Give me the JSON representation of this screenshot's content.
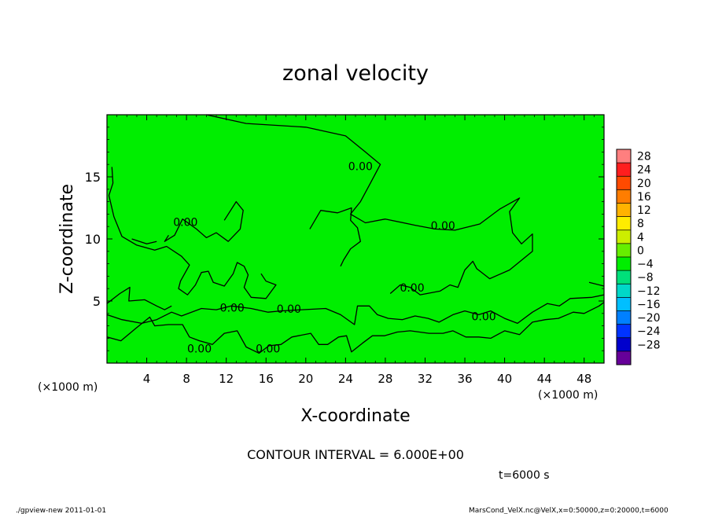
{
  "chart_data": {
    "type": "heatmap",
    "title": "zonal velocity",
    "xlabel": "X-coordinate",
    "ylabel": "Z-coordinate",
    "x_unit_label": "(×1000 m)",
    "y_unit_label": "(×1000 m)",
    "xlim": [
      0,
      50
    ],
    "ylim": [
      0,
      20
    ],
    "x_ticks": [
      4,
      8,
      12,
      16,
      20,
      24,
      28,
      32,
      36,
      40,
      44,
      48
    ],
    "y_ticks": [
      5,
      10,
      15
    ],
    "colorbar": {
      "levels": [
        28,
        24,
        20,
        16,
        12,
        8,
        4,
        0,
        -4,
        -8,
        -12,
        -16,
        -20,
        -24,
        -28
      ],
      "colors": [
        "#ff7f7f",
        "#ff1e1e",
        "#ff4a00",
        "#ff7d00",
        "#ffb300",
        "#ffec00",
        "#ccee00",
        "#66ee00",
        "#00ee00",
        "#00e07a",
        "#00d8c8",
        "#00bfff",
        "#0080ff",
        "#0033ff",
        "#0000cc",
        "#660099"
      ]
    },
    "background_color": "#00ee00",
    "contour_interval_text": "CONTOUR INTERVAL = 6.000E+00",
    "contour_label": "0.00",
    "contour_labels": [
      {
        "text": "0.00",
        "x": 7.9,
        "z": 11.3
      },
      {
        "text": "0.00",
        "x": 25.5,
        "z": 15.8
      },
      {
        "text": "0.00",
        "x": 33.8,
        "z": 11.0
      },
      {
        "text": "0.00",
        "x": 30.7,
        "z": 6.0
      },
      {
        "text": "0.00",
        "x": 12.6,
        "z": 4.4
      },
      {
        "text": "0.00",
        "x": 18.3,
        "z": 4.3
      },
      {
        "text": "0.00",
        "x": 37.9,
        "z": 3.7
      },
      {
        "text": "0.00",
        "x": 9.3,
        "z": 1.1
      },
      {
        "text": "0.00",
        "x": 16.2,
        "z": 1.1
      }
    ],
    "contours": [
      [
        [
          10,
          20
        ],
        [
          14,
          19.3
        ],
        [
          20,
          19
        ],
        [
          24,
          18.3
        ],
        [
          26,
          17
        ],
        [
          27.5,
          16
        ],
        [
          26.5,
          14.5
        ],
        [
          25.5,
          13
        ],
        [
          24.5,
          12
        ],
        [
          26,
          11.3
        ],
        [
          28,
          11.6
        ],
        [
          31,
          11.1
        ],
        [
          33,
          10.8
        ],
        [
          35,
          10.7
        ],
        [
          37.5,
          11.2
        ],
        [
          39.5,
          12.4
        ],
        [
          41.5,
          13.3
        ],
        [
          40.5,
          12.2
        ],
        [
          40.8,
          10.5
        ],
        [
          41.7,
          9.6
        ],
        [
          42.8,
          10.4
        ],
        [
          42.8,
          9
        ],
        [
          40.5,
          7.5
        ],
        [
          38.5,
          6.8
        ],
        [
          37.2,
          7.6
        ],
        [
          36.8,
          8.2
        ],
        [
          36,
          7.5
        ],
        [
          35.3,
          6.1
        ],
        [
          34.5,
          6.3
        ],
        [
          33.5,
          5.8
        ],
        [
          31.5,
          5.5
        ],
        [
          30.5,
          6.1
        ],
        [
          29.5,
          6.3
        ],
        [
          28.5,
          5.6
        ]
      ],
      [
        [
          11.8,
          11.5
        ],
        [
          13,
          13
        ],
        [
          13.7,
          12.3
        ],
        [
          13.4,
          10.8
        ],
        [
          12.2,
          9.8
        ],
        [
          11,
          10.5
        ],
        [
          10,
          10.1
        ],
        [
          9,
          10.8
        ],
        [
          7.6,
          11.6
        ],
        [
          6.8,
          10.3
        ],
        [
          5.8,
          9.8
        ],
        [
          6.2,
          10.3
        ]
      ],
      [
        [
          20.4,
          10.8
        ],
        [
          21.5,
          12.3
        ],
        [
          23.2,
          12.1
        ],
        [
          24.6,
          12.5
        ],
        [
          24.5,
          11.5
        ],
        [
          25.2,
          10.9
        ],
        [
          25.5,
          9.8
        ],
        [
          24.5,
          9.2
        ],
        [
          23.8,
          8.3
        ],
        [
          23.5,
          7.8
        ]
      ],
      [
        [
          0.5,
          15.8
        ],
        [
          0.6,
          14.5
        ],
        [
          0.2,
          13.5
        ],
        [
          0.7,
          11.8
        ],
        [
          1.5,
          10.2
        ],
        [
          3,
          9.5
        ],
        [
          4.8,
          9.1
        ],
        [
          6,
          9.4
        ],
        [
          7.5,
          8.6
        ],
        [
          8.3,
          7.9
        ],
        [
          7.4,
          6.6
        ],
        [
          7.2,
          6
        ],
        [
          8.1,
          5.5
        ],
        [
          8.9,
          6.3
        ],
        [
          9.5,
          7.3
        ],
        [
          10.2,
          7.4
        ],
        [
          10.7,
          6.5
        ],
        [
          11.8,
          6.2
        ],
        [
          12.7,
          7.2
        ],
        [
          13.1,
          8.1
        ],
        [
          13.8,
          7.8
        ],
        [
          14.2,
          7.1
        ],
        [
          13.8,
          6.1
        ],
        [
          14.5,
          5.3
        ],
        [
          16,
          5.2
        ],
        [
          17,
          6.3
        ],
        [
          16,
          6.6
        ],
        [
          15.5,
          7.2
        ]
      ],
      [
        [
          0,
          4.8
        ],
        [
          1.3,
          5.6
        ],
        [
          2.3,
          6.1
        ],
        [
          2.2,
          5
        ],
        [
          3.8,
          5.1
        ],
        [
          5,
          4.6
        ],
        [
          5.8,
          4.3
        ],
        [
          6.5,
          4.6
        ]
      ],
      [
        [
          0,
          3.9
        ],
        [
          1.5,
          3.5
        ],
        [
          3.5,
          3.2
        ],
        [
          5,
          3.5
        ],
        [
          6.5,
          4.1
        ],
        [
          7.5,
          3.8
        ],
        [
          9.5,
          4.4
        ],
        [
          11,
          4.3
        ],
        [
          12.5,
          4.6
        ],
        [
          14.5,
          4.4
        ],
        [
          16.2,
          4.1
        ],
        [
          17.5,
          4.2
        ],
        [
          19.6,
          4.3
        ],
        [
          22,
          4.4
        ],
        [
          23.5,
          3.9
        ],
        [
          24.9,
          3.1
        ],
        [
          25.2,
          4.6
        ],
        [
          26.4,
          4.6
        ],
        [
          27.2,
          3.9
        ],
        [
          28.3,
          3.6
        ],
        [
          29.7,
          3.5
        ],
        [
          31,
          3.8
        ],
        [
          32.3,
          3.6
        ],
        [
          33.4,
          3.3
        ],
        [
          34.8,
          3.9
        ],
        [
          36,
          4.2
        ],
        [
          37.4,
          3.9
        ],
        [
          38.6,
          4.2
        ],
        [
          40,
          3.6
        ],
        [
          41.3,
          3.2
        ],
        [
          42.8,
          4.1
        ],
        [
          44.3,
          4.8
        ],
        [
          45.5,
          4.6
        ],
        [
          46.6,
          5.2
        ],
        [
          48.8,
          5.3
        ],
        [
          50,
          5.5
        ]
      ],
      [
        [
          0,
          2.1
        ],
        [
          1.4,
          1.8
        ],
        [
          2.3,
          2.4
        ],
        [
          2.9,
          2.8
        ],
        [
          4.3,
          3.7
        ],
        [
          4.8,
          3
        ],
        [
          6.2,
          3.1
        ],
        [
          7.6,
          3.1
        ],
        [
          8.3,
          2.1
        ],
        [
          9.3,
          1.8
        ],
        [
          10.6,
          1.5
        ],
        [
          11.8,
          2.4
        ],
        [
          13.1,
          2.6
        ],
        [
          14,
          1.3
        ],
        [
          15.3,
          0.8
        ],
        [
          16.3,
          1.4
        ],
        [
          17.5,
          1.5
        ],
        [
          18.6,
          2.1
        ],
        [
          20.5,
          2.4
        ],
        [
          21.3,
          1.5
        ],
        [
          22.2,
          1.5
        ],
        [
          23.3,
          2.1
        ],
        [
          24.1,
          2.2
        ],
        [
          24.6,
          0.9
        ],
        [
          25.7,
          1.6
        ],
        [
          26.7,
          2.2
        ],
        [
          27.9,
          2.2
        ],
        [
          29.2,
          2.5
        ],
        [
          30.5,
          2.6
        ],
        [
          32.4,
          2.4
        ],
        [
          33.8,
          2.4
        ],
        [
          34.8,
          2.6
        ],
        [
          36.1,
          2.1
        ],
        [
          37.4,
          2.1
        ],
        [
          38.6,
          2
        ],
        [
          40,
          2.6
        ],
        [
          41.5,
          2.3
        ],
        [
          42.8,
          3.3
        ],
        [
          44.1,
          3.5
        ],
        [
          45.4,
          3.6
        ],
        [
          46.9,
          4.1
        ],
        [
          48,
          4
        ],
        [
          49.5,
          4.6
        ],
        [
          50,
          4.9
        ]
      ],
      [
        [
          48.5,
          6.5
        ],
        [
          50,
          6.2
        ]
      ],
      [
        [
          2.5,
          10
        ],
        [
          4,
          9.6
        ],
        [
          5,
          9.8
        ]
      ]
    ]
  },
  "footer": {
    "time_label": "t=6000 s",
    "program": "./gpview-new  2011-01-01",
    "file_info": "MarsCond_VelX.nc@VelX,x=0:50000,z=0:20000,t=6000"
  }
}
